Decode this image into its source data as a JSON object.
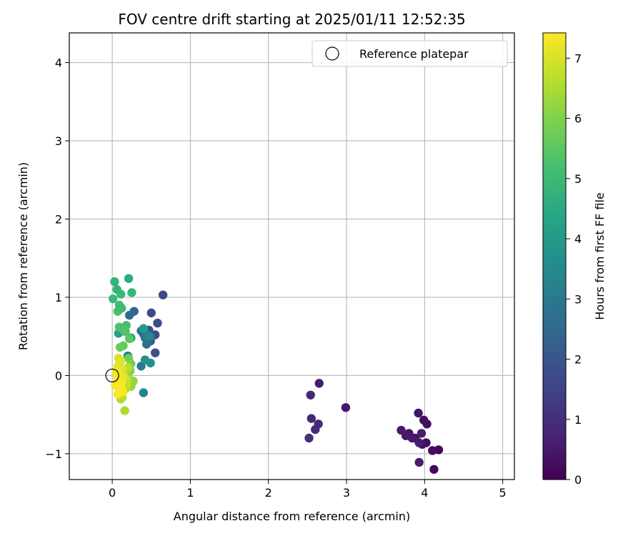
{
  "chart_data": {
    "type": "scatter",
    "title": "FOV centre drift starting at 2025/01/11 12:52:35",
    "xlabel": "Angular distance from reference (arcmin)",
    "ylabel": "Rotation from reference (arcmin)",
    "xlim": [
      -0.55,
      5.15
    ],
    "ylim": [
      -1.33,
      4.38
    ],
    "xticks": [
      0,
      1,
      2,
      3,
      4,
      5
    ],
    "yticks": [
      -1,
      0,
      1,
      2,
      3,
      4
    ],
    "grid": true,
    "legend": {
      "position": "top-right",
      "entries": [
        "Reference platepar"
      ]
    },
    "reference_point": {
      "x": 0,
      "y": 0,
      "label": "Reference platepar"
    },
    "colorbar": {
      "label": "Hours from first FF file",
      "range": [
        0,
        7.42
      ],
      "ticks": [
        0,
        1,
        2,
        3,
        4,
        5,
        6,
        7
      ],
      "colormap": "viridis"
    },
    "points": [
      {
        "x": 4.12,
        "y": -1.2,
        "c": 0.1
      },
      {
        "x": 4.18,
        "y": -0.95,
        "c": 0.1
      },
      {
        "x": 4.1,
        "y": -0.96,
        "c": 0.2
      },
      {
        "x": 4.02,
        "y": -0.86,
        "c": 0.2
      },
      {
        "x": 3.97,
        "y": -0.88,
        "c": 0.3
      },
      {
        "x": 4.03,
        "y": -0.62,
        "c": 0.3
      },
      {
        "x": 3.99,
        "y": -0.57,
        "c": 0.3
      },
      {
        "x": 3.92,
        "y": -0.48,
        "c": 0.4
      },
      {
        "x": 3.88,
        "y": -0.8,
        "c": 0.4
      },
      {
        "x": 3.8,
        "y": -0.74,
        "c": 0.4
      },
      {
        "x": 3.76,
        "y": -0.77,
        "c": 0.5
      },
      {
        "x": 3.7,
        "y": -0.7,
        "c": 0.5
      },
      {
        "x": 3.84,
        "y": -0.8,
        "c": 0.5
      },
      {
        "x": 3.93,
        "y": -0.86,
        "c": 0.6
      },
      {
        "x": 3.96,
        "y": -0.74,
        "c": 0.6
      },
      {
        "x": 3.93,
        "y": -1.11,
        "c": 0.6
      },
      {
        "x": 2.99,
        "y": -0.41,
        "c": 0.5
      },
      {
        "x": 2.65,
        "y": -0.1,
        "c": 0.6
      },
      {
        "x": 2.54,
        "y": -0.25,
        "c": 0.8
      },
      {
        "x": 2.55,
        "y": -0.55,
        "c": 0.8
      },
      {
        "x": 2.64,
        "y": -0.62,
        "c": 0.9
      },
      {
        "x": 2.6,
        "y": -0.69,
        "c": 0.9
      },
      {
        "x": 2.52,
        "y": -0.8,
        "c": 1.0
      },
      {
        "x": 0.65,
        "y": 1.03,
        "c": 1.6
      },
      {
        "x": 0.58,
        "y": 0.67,
        "c": 1.7
      },
      {
        "x": 0.5,
        "y": 0.8,
        "c": 1.7
      },
      {
        "x": 0.55,
        "y": 0.52,
        "c": 1.8
      },
      {
        "x": 0.55,
        "y": 0.29,
        "c": 1.8
      },
      {
        "x": 0.47,
        "y": 0.58,
        "c": 1.9
      },
      {
        "x": 0.49,
        "y": 0.44,
        "c": 2.1
      },
      {
        "x": 0.4,
        "y": 0.53,
        "c": 2.3
      },
      {
        "x": 0.28,
        "y": 0.82,
        "c": 2.4
      },
      {
        "x": 0.22,
        "y": 0.77,
        "c": 2.6
      },
      {
        "x": 0.44,
        "y": 0.4,
        "c": 2.7
      },
      {
        "x": 0.37,
        "y": 0.57,
        "c": 2.8
      },
      {
        "x": 0.42,
        "y": 0.48,
        "c": 2.8
      },
      {
        "x": 0.44,
        "y": 0.52,
        "c": 3.0
      },
      {
        "x": 0.37,
        "y": 0.12,
        "c": 3.0
      },
      {
        "x": 0.2,
        "y": 0.25,
        "c": 3.2
      },
      {
        "x": 0.4,
        "y": -0.22,
        "c": 3.4
      },
      {
        "x": 0.48,
        "y": 0.5,
        "c": 3.5
      },
      {
        "x": 0.49,
        "y": 0.16,
        "c": 3.7
      },
      {
        "x": 0.42,
        "y": 0.2,
        "c": 3.8
      },
      {
        "x": 0.4,
        "y": 0.6,
        "c": 4.0
      },
      {
        "x": 0.24,
        "y": 0.48,
        "c": 4.1
      },
      {
        "x": 0.08,
        "y": 0.54,
        "c": 4.3
      },
      {
        "x": 0.21,
        "y": 1.24,
        "c": 4.6
      },
      {
        "x": 0.03,
        "y": 1.2,
        "c": 4.8
      },
      {
        "x": 0.06,
        "y": 1.1,
        "c": 4.8
      },
      {
        "x": 0.25,
        "y": 1.06,
        "c": 4.9
      },
      {
        "x": 0.11,
        "y": 1.04,
        "c": 5.0
      },
      {
        "x": 0.01,
        "y": 0.98,
        "c": 5.0
      },
      {
        "x": 0.09,
        "y": 0.9,
        "c": 5.1
      },
      {
        "x": 0.12,
        "y": 0.86,
        "c": 5.1
      },
      {
        "x": 0.07,
        "y": 0.82,
        "c": 5.2
      },
      {
        "x": 0.18,
        "y": 0.64,
        "c": 5.2
      },
      {
        "x": 0.09,
        "y": 0.62,
        "c": 5.3
      },
      {
        "x": 0.14,
        "y": 0.59,
        "c": 5.3
      },
      {
        "x": 0.17,
        "y": 0.56,
        "c": 5.4
      },
      {
        "x": 0.22,
        "y": 0.47,
        "c": 5.5
      },
      {
        "x": 0.14,
        "y": 0.38,
        "c": 5.6
      },
      {
        "x": 0.1,
        "y": 0.36,
        "c": 5.7
      },
      {
        "x": 0.21,
        "y": 0.22,
        "c": 5.8
      },
      {
        "x": 0.24,
        "y": 0.15,
        "c": 5.9
      },
      {
        "x": 0.23,
        "y": 0.06,
        "c": 6.0
      },
      {
        "x": 0.2,
        "y": -0.02,
        "c": 6.1
      },
      {
        "x": 0.25,
        "y": -0.1,
        "c": 6.1
      },
      {
        "x": 0.27,
        "y": -0.07,
        "c": 6.2
      },
      {
        "x": 0.24,
        "y": -0.14,
        "c": 6.3
      },
      {
        "x": 0.11,
        "y": -0.3,
        "c": 6.4
      },
      {
        "x": 0.16,
        "y": -0.45,
        "c": 6.5
      },
      {
        "x": 0.13,
        "y": -0.28,
        "c": 6.6
      },
      {
        "x": 0.17,
        "y": -0.17,
        "c": 6.6
      },
      {
        "x": 0.2,
        "y": 0.1,
        "c": 6.7
      },
      {
        "x": 0.15,
        "y": 0.03,
        "c": 6.7
      },
      {
        "x": 0.19,
        "y": -0.05,
        "c": 6.8
      },
      {
        "x": 0.18,
        "y": -0.12,
        "c": 6.8
      },
      {
        "x": 0.13,
        "y": -0.22,
        "c": 6.9
      },
      {
        "x": 0.09,
        "y": -0.15,
        "c": 7.0
      },
      {
        "x": 0.06,
        "y": -0.1,
        "c": 7.0
      },
      {
        "x": 0.08,
        "y": 0.22,
        "c": 7.0
      },
      {
        "x": 0.11,
        "y": 0.18,
        "c": 7.1
      },
      {
        "x": 0.07,
        "y": 0.12,
        "c": 7.1
      },
      {
        "x": 0.12,
        "y": 0.08,
        "c": 7.1
      },
      {
        "x": 0.05,
        "y": 0.05,
        "c": 7.2
      },
      {
        "x": 0.1,
        "y": 0.02,
        "c": 7.2
      },
      {
        "x": 0.14,
        "y": -0.02,
        "c": 7.2
      },
      {
        "x": 0.08,
        "y": -0.05,
        "c": 7.3
      },
      {
        "x": 0.12,
        "y": -0.08,
        "c": 7.3
      },
      {
        "x": 0.04,
        "y": -0.12,
        "c": 7.3
      },
      {
        "x": 0.09,
        "y": -0.18,
        "c": 7.3
      },
      {
        "x": 0.13,
        "y": -0.2,
        "c": 7.4
      },
      {
        "x": 0.07,
        "y": -0.24,
        "c": 7.4
      },
      {
        "x": 0.11,
        "y": -0.14,
        "c": 7.4
      },
      {
        "x": 0.06,
        "y": 0.0,
        "c": 7.4
      }
    ]
  }
}
